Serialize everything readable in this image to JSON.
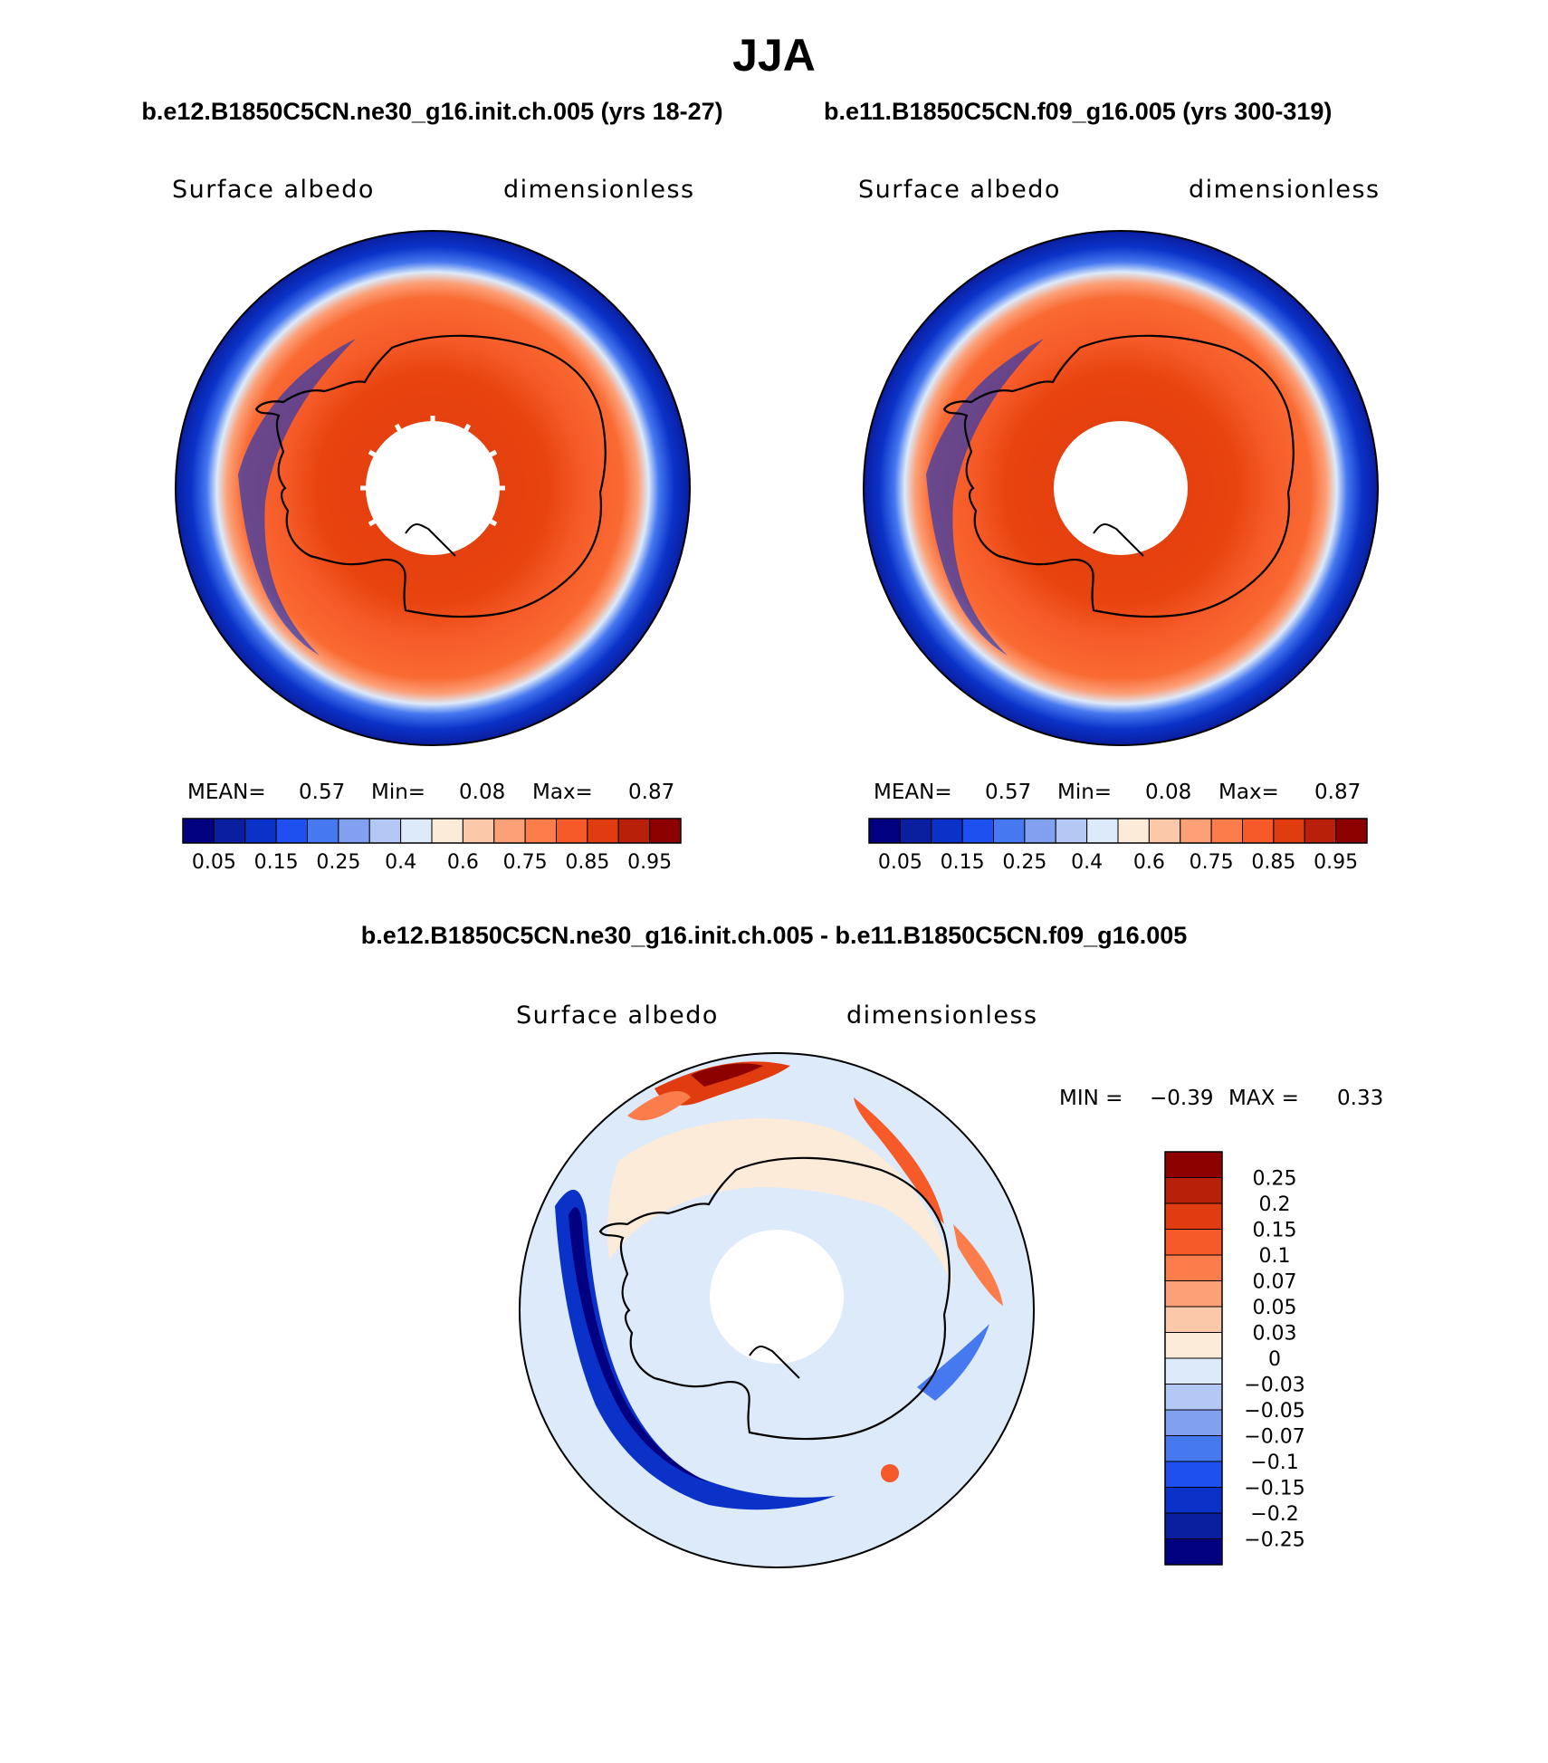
{
  "title": "JJA",
  "panels": [
    {
      "case_title": "b.e12.B1850C5CN.ne30_g16.init.ch.005 (yrs 18-27)",
      "variable": "Surface albedo",
      "units": "dimensionless",
      "mean_label": "MEAN=",
      "mean_value": "0.57",
      "min_label": "Min=",
      "min_value": "0.08",
      "max_label": "Max=",
      "max_value": "0.87",
      "icon": "south-polar-map-icon"
    },
    {
      "case_title": "b.e11.B1850C5CN.f09_g16.005 (yrs 300-319)",
      "variable": "Surface albedo",
      "units": "dimensionless",
      "mean_label": "MEAN=",
      "mean_value": "0.57",
      "min_label": "Min=",
      "min_value": "0.08",
      "max_label": "Max=",
      "max_value": "0.87",
      "icon": "south-polar-map-icon"
    }
  ],
  "abs_colorbar": {
    "colors": [
      "#000080",
      "#0a1ea0",
      "#0a32c8",
      "#1e50f0",
      "#4678f0",
      "#82a0f0",
      "#b4c8f5",
      "#dceafa",
      "#fdebd9",
      "#fcc8aa",
      "#fca078",
      "#fa7d4b",
      "#f55a28",
      "#e13c0f",
      "#b9200a",
      "#8c0000"
    ],
    "tick_labels": [
      "0.05",
      "0.15",
      "0.25",
      "0.4",
      "0.6",
      "0.75",
      "0.85",
      "0.95"
    ]
  },
  "diff": {
    "case_title": "b.e12.B1850C5CN.ne30_g16.init.ch.005 - b.e11.B1850C5CN.f09_g16.005",
    "variable": "Surface albedo",
    "units": "dimensionless",
    "min_label": "MIN =",
    "min_value": "−0.39",
    "max_label": "MAX =",
    "max_value": "0.33",
    "icon": "south-polar-map-icon"
  },
  "diff_colorbar": {
    "colors": [
      "#8c0000",
      "#b9200a",
      "#e13c0f",
      "#f55a28",
      "#fa7d4b",
      "#fca078",
      "#fcc8aa",
      "#fdebd9",
      "#dceafa",
      "#b4c8f5",
      "#82a0f0",
      "#4678f0",
      "#1e50f0",
      "#0a32c8",
      "#0a1ea0",
      "#000080"
    ],
    "tick_labels": [
      "0.25",
      "0.2",
      "0.15",
      "0.1",
      "0.07",
      "0.05",
      "0.03",
      "0",
      "−0.03",
      "−0.05",
      "−0.07",
      "−0.1",
      "−0.15",
      "−0.2",
      "−0.25"
    ]
  }
}
